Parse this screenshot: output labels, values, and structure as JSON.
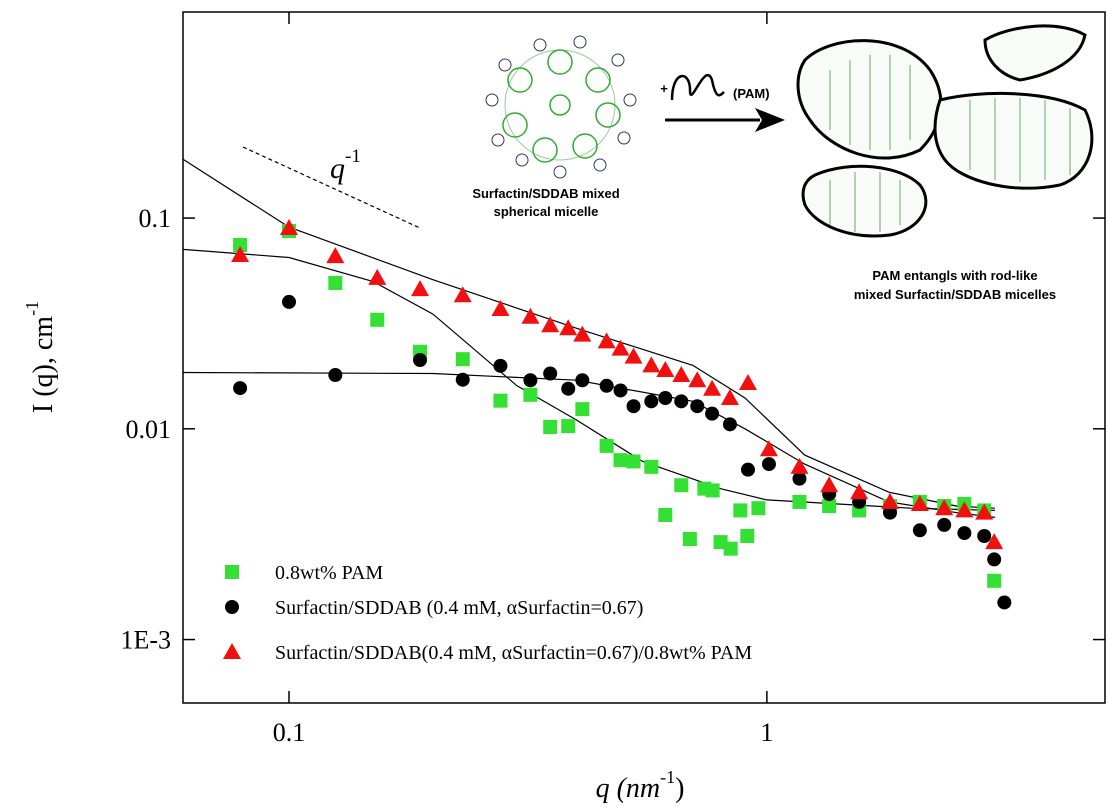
{
  "chart_data": {
    "type": "scatter",
    "xscale": "log",
    "yscale": "log",
    "xlim": [
      0.06,
      5.1
    ],
    "ylim": [
      0.0005,
      0.95
    ],
    "xticks": [
      0.1,
      1
    ],
    "yticks": [
      {
        "value": 0.001,
        "label": "1E-3"
      },
      0.01,
      0.1
    ],
    "xlabel": [
      "q (nm",
      "-1",
      ")"
    ],
    "ylabel": [
      "I (q), cm",
      "-1"
    ],
    "slope_label": [
      "q",
      "-1"
    ],
    "legend": "lower left",
    "series": [
      {
        "name": "0.8wt% PAM",
        "marker": "square",
        "color": "#33e033",
        "x": [
          0.079,
          0.1,
          0.125,
          0.153,
          0.188,
          0.231,
          0.277,
          0.32,
          0.352,
          0.384,
          0.411,
          0.462,
          0.494,
          0.526,
          0.573,
          0.613,
          0.662,
          0.69,
          0.74,
          0.77,
          0.8,
          0.84,
          0.88,
          0.91,
          0.96,
          1.17,
          1.35,
          1.56,
          1.81,
          2.09,
          2.35,
          2.59,
          2.85,
          2.99
        ],
        "values": [
          0.0745,
          0.0868,
          0.0492,
          0.0329,
          0.0232,
          0.0214,
          0.0136,
          0.0145,
          0.0102,
          0.0103,
          0.0124,
          0.0083,
          0.0071,
          0.007,
          0.0066,
          0.0039,
          0.0054,
          0.003,
          0.0052,
          0.0051,
          0.0029,
          0.0027,
          0.0041,
          0.0031,
          0.0042,
          0.0045,
          0.0043,
          0.0041,
          0.0043,
          0.0045,
          0.0043,
          0.0044,
          0.0041,
          0.0019
        ]
      },
      {
        "name": "Surfactin/SDDAB (0.4 mM, αSurfactin=0.67)",
        "marker": "circle",
        "color": "#000000",
        "x": [
          0.079,
          0.1,
          0.125,
          0.188,
          0.231,
          0.277,
          0.32,
          0.352,
          0.384,
          0.411,
          0.462,
          0.494,
          0.526,
          0.573,
          0.613,
          0.662,
          0.715,
          0.768,
          0.837,
          0.913,
          1.01,
          1.17,
          1.35,
          1.56,
          1.81,
          2.09,
          2.35,
          2.59,
          2.85,
          2.99,
          3.14
        ],
        "values": [
          0.0156,
          0.04,
          0.018,
          0.0212,
          0.0171,
          0.0199,
          0.017,
          0.0183,
          0.0155,
          0.017,
          0.016,
          0.0152,
          0.0128,
          0.0135,
          0.014,
          0.0135,
          0.0128,
          0.0118,
          0.0105,
          0.0064,
          0.0068,
          0.0058,
          0.0049,
          0.0045,
          0.004,
          0.0033,
          0.0035,
          0.0032,
          0.0031,
          0.0024,
          0.0015
        ]
      },
      {
        "name": "Surfactin/SDDAB(0.4 mM, αSurfactin=0.67)/0.8wt% PAM",
        "marker": "triangle",
        "color": "#f01010",
        "x": [
          0.079,
          0.1,
          0.125,
          0.153,
          0.188,
          0.231,
          0.277,
          0.32,
          0.352,
          0.384,
          0.411,
          0.462,
          0.494,
          0.526,
          0.573,
          0.613,
          0.662,
          0.715,
          0.768,
          0.837,
          0.913,
          1.01,
          1.17,
          1.35,
          1.56,
          1.81,
          2.09,
          2.35,
          2.59,
          2.85,
          2.99
        ],
        "values": [
          0.0668,
          0.0897,
          0.066,
          0.052,
          0.046,
          0.043,
          0.037,
          0.034,
          0.031,
          0.03,
          0.028,
          0.026,
          0.024,
          0.022,
          0.02,
          0.019,
          0.018,
          0.017,
          0.0155,
          0.014,
          0.0165,
          0.008,
          0.0066,
          0.0054,
          0.005,
          0.0045,
          0.0044,
          0.0042,
          0.0041,
          0.004,
          0.0029
        ]
      }
    ],
    "fits": [
      {
        "color": "#000000",
        "x": [
          0.06,
          0.1,
          0.2,
          0.4,
          0.7,
          0.9,
          1.2,
          1.8,
          2.5,
          3.0
        ],
        "values": [
          0.19,
          0.0906,
          0.051,
          0.03,
          0.02,
          0.014,
          0.0075,
          0.005,
          0.0043,
          0.0042
        ]
      },
      {
        "color": "#000000",
        "x": [
          0.06,
          0.1,
          0.15,
          0.2,
          0.3,
          0.4,
          0.55,
          0.8,
          1.0,
          2.0,
          3.0
        ],
        "values": [
          0.071,
          0.065,
          0.05,
          0.035,
          0.016,
          0.011,
          0.007,
          0.0052,
          0.0046,
          0.0042,
          0.0041
        ]
      },
      {
        "color": "#000000",
        "x": [
          0.06,
          0.2,
          0.4,
          0.7,
          0.9,
          1.2,
          1.8,
          2.5,
          3.0
        ],
        "values": [
          0.0185,
          0.0183,
          0.017,
          0.0135,
          0.01,
          0.0068,
          0.0045,
          0.004,
          0.0038
        ]
      }
    ],
    "illustration": {
      "left_caption": [
        "Surfactin/SDDAB mixed",
        "spherical micelle"
      ],
      "plus": "+",
      "polymer": "(PAM)",
      "right_caption": [
        "PAM entangls with rod-like",
        "mixed Surfactin/SDDAB micelles"
      ]
    }
  }
}
